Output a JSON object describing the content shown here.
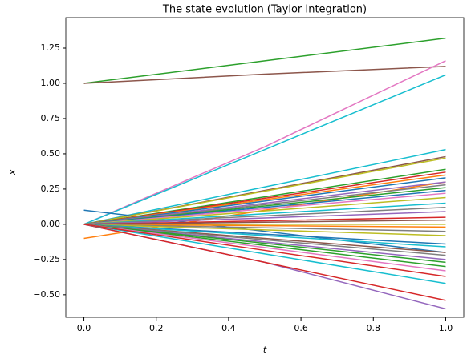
{
  "chart_data": {
    "type": "line",
    "title": "The state evolution (Taylor Integration)",
    "x_label": "t",
    "y_label": "x",
    "x": [
      0,
      0.5,
      1
    ],
    "xlim": [
      -0.05,
      1.05
    ],
    "ylim": [
      -0.66,
      1.466
    ],
    "xticks": [
      {
        "value": 0,
        "label": "0.0"
      },
      0.2,
      0.4,
      0.6,
      0.8,
      {
        "value": 1,
        "label": "1.0"
      }
    ],
    "yticks": [
      {
        "value": -0.5,
        "label": "−0.50"
      },
      {
        "value": -0.25,
        "label": "−0.25"
      },
      {
        "value": 0,
        "label": "0.00"
      },
      0.25,
      {
        "value": 0.5,
        "label": "0.50"
      },
      0.75,
      {
        "value": 1,
        "label": "1.00"
      },
      1.25
    ],
    "series": [
      {
        "color": "#2ca02c",
        "values": [
          1.0,
          1.16,
          1.32
        ]
      },
      {
        "color": "#8c564b",
        "values": [
          1.0,
          1.065,
          1.12
        ]
      },
      {
        "color": "#e377c2",
        "values": [
          0,
          0.55,
          1.16
        ]
      },
      {
        "color": "#17becf",
        "values": [
          0,
          0.53,
          1.06
        ]
      },
      {
        "color": "#17becf",
        "values": [
          0,
          0.265,
          0.53
        ]
      },
      {
        "color": "#1f77b4",
        "values": [
          0.1,
          -0.05,
          -0.2
        ]
      },
      {
        "color": "#ff7f0e",
        "values": [
          -0.1,
          0.1,
          0.3
        ]
      },
      {
        "color": "#9467bd",
        "values": [
          0,
          -0.27,
          -0.6
        ]
      },
      {
        "color": "#d62728",
        "values": [
          0,
          -0.27,
          -0.54
        ]
      },
      {
        "color": "#17becf",
        "values": [
          0,
          -0.21,
          -0.42
        ]
      },
      {
        "color": "#8c564b",
        "values": [
          0,
          0.24,
          0.48
        ]
      },
      {
        "color": "#bcbd22",
        "values": [
          0,
          0.235,
          0.47
        ]
      },
      {
        "color": "#2ca02c",
        "values": [
          0,
          0.195,
          0.39
        ]
      },
      {
        "color": "#d62728",
        "values": [
          0,
          0.185,
          0.37
        ]
      },
      {
        "color": "#ff7f0e",
        "values": [
          0,
          0.175,
          0.35
        ]
      },
      {
        "color": "#1f77b4",
        "values": [
          0,
          0.165,
          0.33
        ]
      },
      {
        "color": "#9467bd",
        "values": [
          0,
          0.15,
          0.3
        ]
      },
      {
        "color": "#7f7f7f",
        "values": [
          0,
          0.14,
          0.28
        ]
      },
      {
        "color": "#2ca02c",
        "values": [
          0,
          0.13,
          0.26
        ]
      },
      {
        "color": "#1f77b4",
        "values": [
          0,
          0.12,
          0.24
        ]
      },
      {
        "color": "#e377c2",
        "values": [
          0,
          0.11,
          0.22
        ]
      },
      {
        "color": "#bcbd22",
        "values": [
          0,
          0.095,
          0.19
        ]
      },
      {
        "color": "#17becf",
        "values": [
          0,
          0.075,
          0.15
        ]
      },
      {
        "color": "#7f7f7f",
        "values": [
          0,
          0.06,
          0.12
        ]
      },
      {
        "color": "#9467bd",
        "values": [
          0,
          0.045,
          0.09
        ]
      },
      {
        "color": "#d62728",
        "values": [
          0,
          0.025,
          0.05
        ]
      },
      {
        "color": "#8c564b",
        "values": [
          0,
          0.015,
          0.03
        ]
      },
      {
        "color": "#bcbd22",
        "values": [
          0,
          0,
          0
        ]
      },
      {
        "color": "#ff7f0e",
        "values": [
          0,
          -0.01,
          -0.02
        ]
      },
      {
        "color": "#7f7f7f",
        "values": [
          0,
          -0.025,
          -0.05
        ]
      },
      {
        "color": "#bcbd22",
        "values": [
          0,
          -0.04,
          -0.08
        ]
      },
      {
        "color": "#1f77b4",
        "values": [
          0,
          -0.07,
          -0.14
        ]
      },
      {
        "color": "#17becf",
        "values": [
          0,
          -0.08,
          -0.16
        ]
      },
      {
        "color": "#8c564b",
        "values": [
          0,
          -0.1,
          -0.2
        ]
      },
      {
        "color": "#7f7f7f",
        "values": [
          0,
          -0.11,
          -0.22
        ]
      },
      {
        "color": "#9467bd",
        "values": [
          0,
          -0.125,
          -0.25
        ]
      },
      {
        "color": "#2ca02c",
        "values": [
          0,
          -0.135,
          -0.27
        ]
      },
      {
        "color": "#2ca02c",
        "values": [
          0,
          -0.15,
          -0.3
        ]
      },
      {
        "color": "#e377c2",
        "values": [
          0,
          -0.165,
          -0.33
        ]
      },
      {
        "color": "#d62728",
        "values": [
          0,
          -0.185,
          -0.37
        ]
      }
    ]
  }
}
